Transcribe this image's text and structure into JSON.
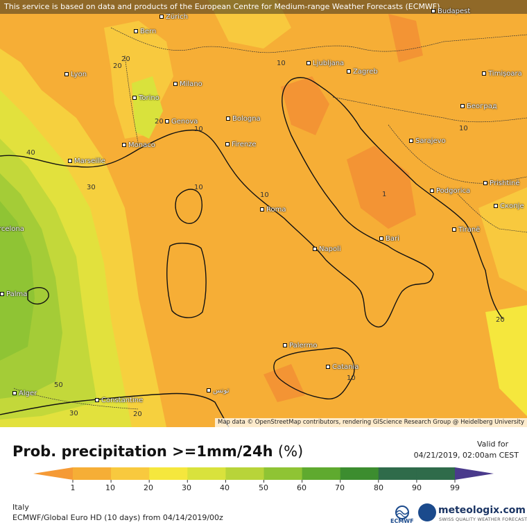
{
  "banner_text": "This service is based on data and products of the European Centre for Medium-range Weather Forecasts (ECMWF)",
  "attribution": "Map data © OpenStreetMap contributors, rendering GIScience Research Group @ Heidelberg University",
  "cities": [
    {
      "name": "Budapest"
    },
    {
      "name": "Bern"
    },
    {
      "name": "Zürich"
    },
    {
      "name": "Lyon"
    },
    {
      "name": "Ljubljana"
    },
    {
      "name": "Zagreb"
    },
    {
      "name": "Timișoara"
    },
    {
      "name": "Milano"
    },
    {
      "name": "Torino"
    },
    {
      "name": "Genova"
    },
    {
      "name": "Bologna"
    },
    {
      "name": "Београд"
    },
    {
      "name": "Monaco"
    },
    {
      "name": "Firenze"
    },
    {
      "name": "Sarajevo"
    },
    {
      "name": "Marseille"
    },
    {
      "name": "Podgorica"
    },
    {
      "name": "Prishtinë"
    },
    {
      "name": "Roma"
    },
    {
      "name": "Скопје"
    },
    {
      "name": "Tiranë"
    },
    {
      "name": "Bari"
    },
    {
      "name": "Napoli"
    },
    {
      "name": "Barcelona"
    },
    {
      "name": "Palma"
    },
    {
      "name": "Palermo"
    },
    {
      "name": "Catania"
    },
    {
      "name": "Alger"
    },
    {
      "name": "Constantine"
    },
    {
      "name": "تونس"
    }
  ],
  "map_contour_labels": [
    "20",
    "10",
    "20",
    "10",
    "40",
    "30",
    "10",
    "10",
    "10",
    "1",
    "50",
    "30",
    "20",
    "20",
    "20",
    "10"
  ],
  "legend": {
    "title": "Prob. precipitation >=1mm/24h",
    "unit": "(%)",
    "valid_label": "Valid for",
    "valid_date": "04/21/2019, 02:00am CEST",
    "ticks": [
      "1",
      "10",
      "20",
      "30",
      "40",
      "50",
      "60",
      "70",
      "80",
      "90",
      "99"
    ],
    "colors": [
      "#f59a36",
      "#f6ae36",
      "#f8c93e",
      "#f5e73d",
      "#d9e23c",
      "#b8d439",
      "#8fc434",
      "#5faa2f",
      "#3c8d2f",
      "#2f6b4a",
      "#4a3a8c"
    ]
  },
  "footer": {
    "region": "Italy",
    "model": "ECMWF/Global Euro HD (10 days) from 04/14/2019/00z",
    "ecmwf_label": "ECMWF",
    "brand": "meteologix.com",
    "tagline": "SWISS QUALITY WEATHER FORECASTING"
  }
}
